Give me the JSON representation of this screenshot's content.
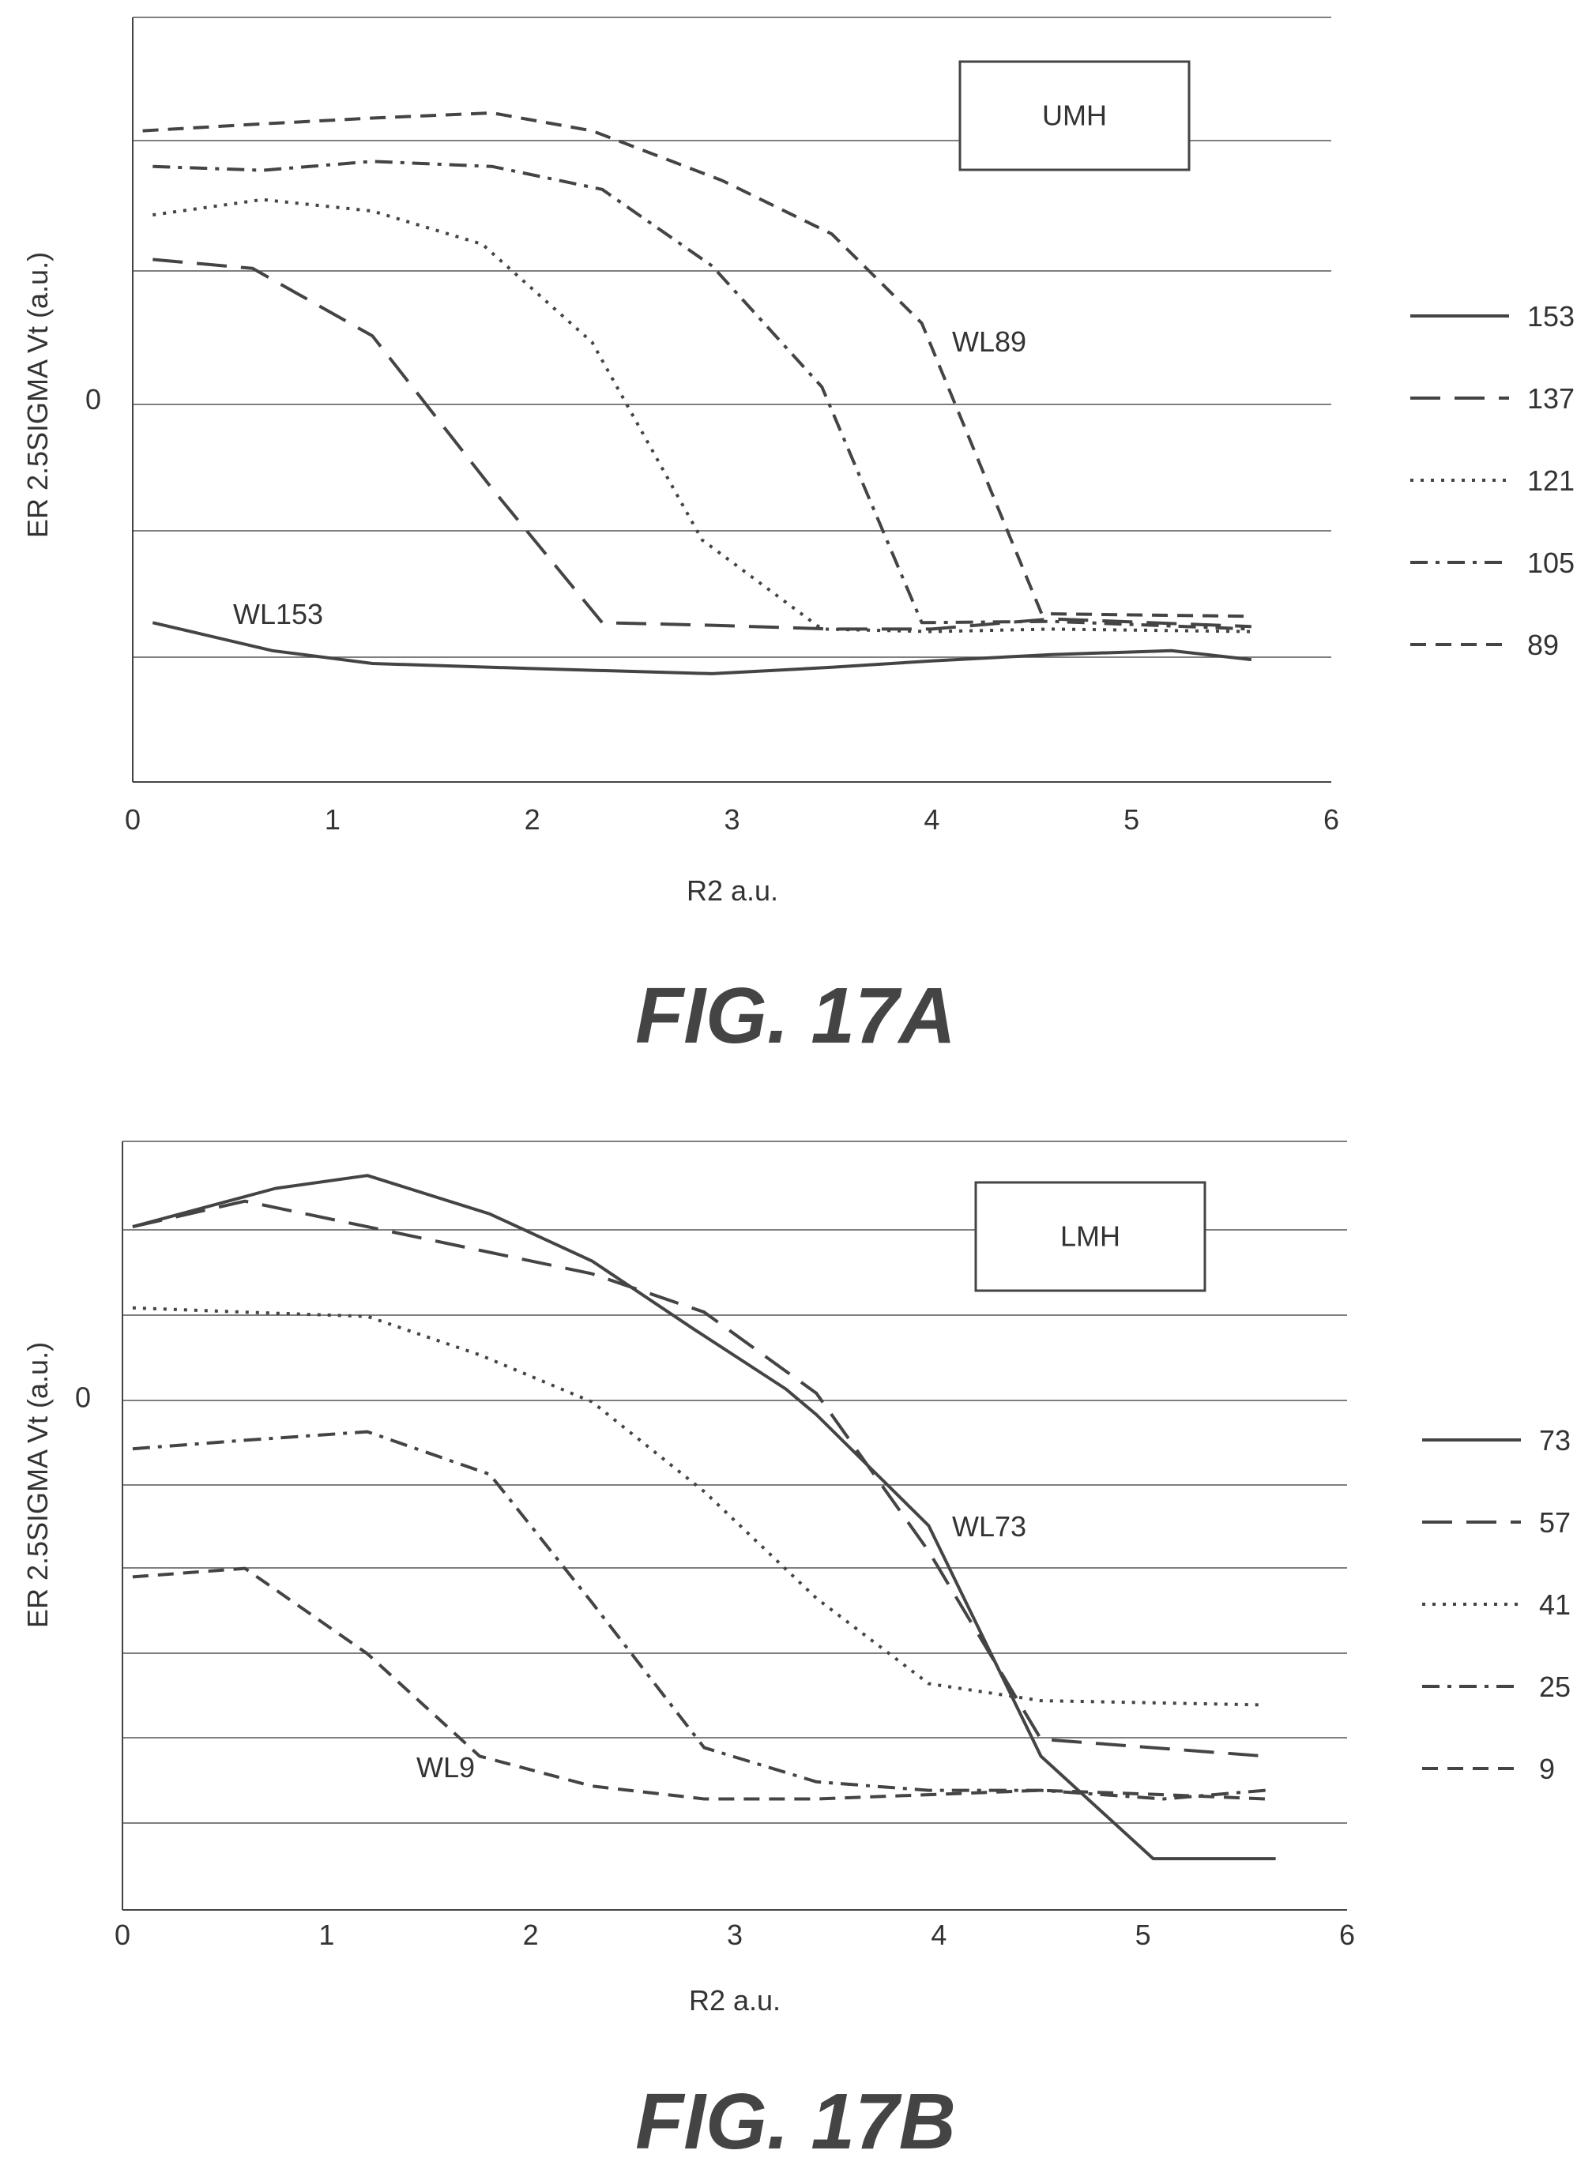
{
  "figures": [
    {
      "caption": "FIG. 17A",
      "box_label": "UMH",
      "xlabel": "R2 a.u.",
      "ylabel": "ER 2.5SIGMA Vt (a.u.)",
      "x_ticks": [
        "0",
        "1",
        "2",
        "3",
        "4",
        "5",
        "6"
      ],
      "y_tick_label": "0",
      "annotations": [
        "WL153",
        "WL89"
      ]
    },
    {
      "caption": "FIG. 17B",
      "box_label": "LMH",
      "xlabel": "R2 a.u.",
      "ylabel": "ER 2.5SIGMA Vt (a.u.)",
      "x_ticks": [
        "0",
        "1",
        "2",
        "3",
        "4",
        "5",
        "6"
      ],
      "y_tick_label": "0",
      "annotations": [
        "WL73",
        "WL9"
      ]
    }
  ],
  "chart_data": [
    {
      "type": "line",
      "title": "FIG. 17A",
      "xlabel": "R2 a.u.",
      "ylabel": "ER 2.5SIGMA Vt (a.u.)",
      "xlim": [
        0,
        6
      ],
      "ylim": [
        -3,
        3
      ],
      "grid": true,
      "legend_position": "right",
      "y_tick_values": [
        0
      ],
      "series": [
        {
          "name": "153",
          "dash": "solid",
          "x": [
            0.1,
            0.7,
            1.2,
            2.0,
            2.9,
            3.5,
            4.0,
            4.6,
            5.2,
            5.6
          ],
          "y": [
            -1.75,
            -1.97,
            -2.07,
            -2.11,
            -2.15,
            -2.1,
            -2.05,
            -2.0,
            -1.97,
            -2.04
          ]
        },
        {
          "name": "137",
          "dash": "longdash",
          "x": [
            0.1,
            0.6,
            1.2,
            1.8,
            2.35,
            2.9,
            3.5,
            4.0,
            4.6,
            5.6
          ],
          "y": [
            1.1,
            1.03,
            0.5,
            -0.7,
            -1.75,
            -1.77,
            -1.8,
            -1.8,
            -1.72,
            -1.78
          ]
        },
        {
          "name": "121",
          "dash": "dotted",
          "x": [
            0.1,
            0.65,
            1.2,
            1.75,
            2.3,
            2.85,
            3.45,
            4.0,
            4.6,
            5.6
          ],
          "y": [
            1.45,
            1.57,
            1.48,
            1.22,
            0.45,
            -1.1,
            -1.8,
            -1.82,
            -1.8,
            -1.82
          ]
        },
        {
          "name": "105",
          "dash": "dashdot",
          "x": [
            0.1,
            0.65,
            1.2,
            1.8,
            2.35,
            2.9,
            3.45,
            3.95,
            4.6,
            5.6
          ],
          "y": [
            1.83,
            1.8,
            1.87,
            1.83,
            1.65,
            1.05,
            0.1,
            -1.75,
            -1.74,
            -1.8
          ]
        },
        {
          "name": "89",
          "dash": "dashed",
          "x": [
            0.05,
            0.6,
            1.2,
            1.8,
            2.3,
            2.95,
            3.5,
            3.95,
            4.55,
            5.6
          ],
          "y": [
            2.11,
            2.16,
            2.21,
            2.25,
            2.11,
            1.72,
            1.3,
            0.6,
            -1.68,
            -1.7
          ]
        }
      ]
    },
    {
      "type": "line",
      "title": "FIG. 17B",
      "xlabel": "R2 a.u.",
      "ylabel": "ER 2.5SIGMA Vt (a.u.)",
      "xlim": [
        0,
        6
      ],
      "ylim": [
        -6,
        3
      ],
      "grid": true,
      "legend_position": "right",
      "y_tick_values": [
        0
      ],
      "series": [
        {
          "name": "73",
          "dash": "solid",
          "x": [
            0.05,
            0.75,
            1.2,
            1.8,
            2.3,
            2.8,
            3.25,
            3.4,
            3.95,
            4.5,
            5.05,
            5.65
          ],
          "y": [
            2.0,
            2.45,
            2.6,
            2.15,
            1.6,
            0.8,
            0.1,
            -0.2,
            -1.5,
            -4.2,
            -5.4,
            -5.4
          ]
        },
        {
          "name": "57",
          "dash": "longdash",
          "x": [
            0.05,
            0.6,
            1.2,
            1.8,
            2.3,
            2.85,
            3.4,
            3.95,
            4.5,
            5.6
          ],
          "y": [
            2.0,
            2.3,
            2.0,
            1.7,
            1.45,
            1.0,
            0.05,
            -1.8,
            -4.0,
            -4.2
          ]
        },
        {
          "name": "41",
          "dash": "dotted",
          "x": [
            0.05,
            0.6,
            1.2,
            1.75,
            2.3,
            2.85,
            3.4,
            3.95,
            4.5,
            5.6
          ],
          "y": [
            1.05,
            1.0,
            0.95,
            0.5,
            -0.05,
            -1.1,
            -2.35,
            -3.35,
            -3.55,
            -3.6
          ]
        },
        {
          "name": "25",
          "dash": "dashdot",
          "x": [
            0.05,
            0.6,
            1.2,
            1.8,
            2.3,
            2.85,
            3.4,
            3.95,
            4.5,
            5.1,
            5.6
          ],
          "y": [
            -0.6,
            -0.5,
            -0.4,
            -0.9,
            -2.4,
            -4.1,
            -4.5,
            -4.6,
            -4.6,
            -4.7,
            -4.6
          ]
        },
        {
          "name": "9",
          "dash": "dashed",
          "x": [
            0.05,
            0.6,
            1.2,
            1.75,
            2.3,
            2.85,
            3.4,
            3.95,
            4.5,
            5.1,
            5.6
          ],
          "y": [
            -2.1,
            -2.0,
            -3.0,
            -4.2,
            -4.55,
            -4.7,
            -4.7,
            -4.65,
            -4.6,
            -4.65,
            -4.7
          ]
        }
      ]
    }
  ]
}
